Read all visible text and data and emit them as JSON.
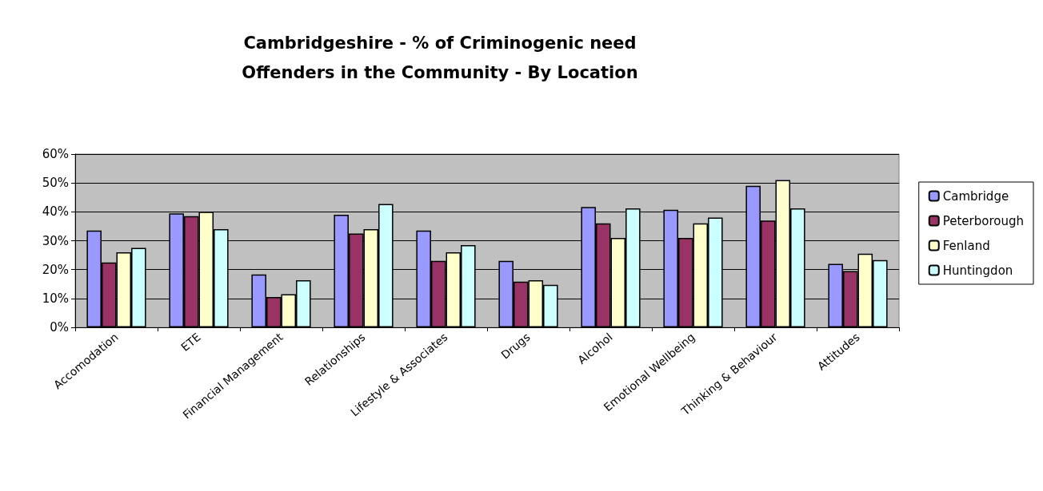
{
  "chart_data": {
    "type": "bar",
    "title": "Cambridgeshire - % of Criminogenic need",
    "subtitle": "Offenders in the Community - By Location",
    "categories": [
      "Accomodation",
      "ETE",
      "Financial Management",
      "Relationships",
      "Lifestyle & Associates",
      "Drugs",
      "Alcohol",
      "Emotional Wellbeing",
      "Thinking & Behaviour",
      "Attitudes"
    ],
    "series": [
      {
        "name": "Cambridge",
        "color": "#9999ff",
        "values": [
          33.5,
          39.5,
          18.3,
          39,
          33.5,
          23,
          41.7,
          40.7,
          49,
          22
        ]
      },
      {
        "name": "Peterborough",
        "color": "#993366",
        "values": [
          22.5,
          38.5,
          10.5,
          32.5,
          23,
          15.8,
          36,
          31,
          37,
          19.5
        ]
      },
      {
        "name": "Fenland",
        "color": "#ffffcc",
        "values": [
          26,
          40,
          11.5,
          34,
          26,
          16.3,
          31,
          36,
          51,
          25.5
        ]
      },
      {
        "name": "Huntingdon",
        "color": "#ccffff",
        "values": [
          27.5,
          34,
          16.3,
          42.7,
          28.5,
          14.7,
          41.2,
          38,
          41.2,
          23.3
        ]
      }
    ],
    "ylim": [
      0,
      60
    ],
    "yticks": [
      {
        "value": 0,
        "label": "0%"
      },
      {
        "value": 10,
        "label": "10%"
      },
      {
        "value": 20,
        "label": "20%"
      },
      {
        "value": 30,
        "label": "30%"
      },
      {
        "value": 40,
        "label": "40%"
      },
      {
        "value": 50,
        "label": "50%"
      },
      {
        "value": 60,
        "label": "60%"
      }
    ],
    "grid": "y",
    "legend": "right"
  }
}
